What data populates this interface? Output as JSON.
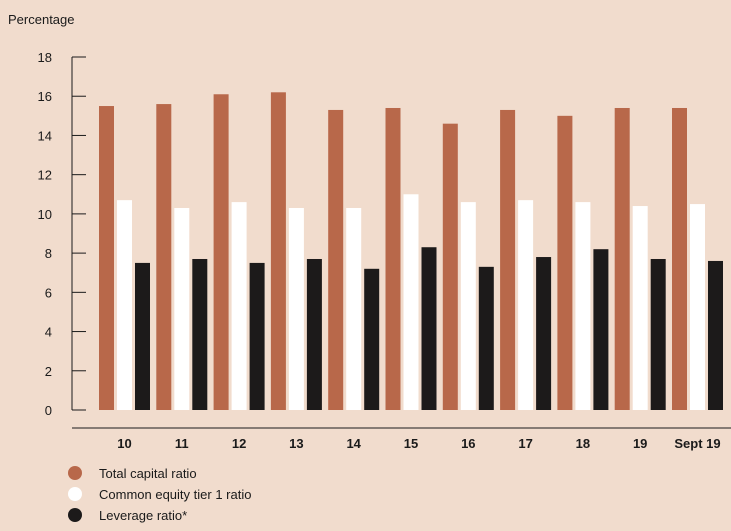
{
  "chart_data": {
    "type": "bar",
    "title": "",
    "xlabel": "",
    "ylabel": "Percentage",
    "ylim": [
      0,
      18
    ],
    "yticks": [
      0,
      2,
      4,
      6,
      8,
      10,
      12,
      14,
      16,
      18
    ],
    "categories": [
      "10",
      "11",
      "12",
      "13",
      "14",
      "15",
      "16",
      "17",
      "18",
      "19",
      "Sept 19"
    ],
    "series": [
      {
        "name": "Total capital ratio",
        "color": "#b8684a",
        "values": [
          15.5,
          15.6,
          16.1,
          16.2,
          15.3,
          15.4,
          14.6,
          15.3,
          15.0,
          15.4,
          15.4
        ]
      },
      {
        "name": "Common equity tier 1 ratio",
        "color": "#ffffff",
        "values": [
          10.7,
          10.3,
          10.6,
          10.3,
          10.3,
          11.0,
          10.6,
          10.7,
          10.6,
          10.4,
          10.5
        ]
      },
      {
        "name": "Leverage ratio*",
        "color": "#1c1a1a",
        "values": [
          7.5,
          7.7,
          7.5,
          7.7,
          7.2,
          8.3,
          7.3,
          7.8,
          8.2,
          7.7,
          7.6
        ]
      }
    ],
    "grid": false,
    "legend_position": "bottom-left"
  }
}
